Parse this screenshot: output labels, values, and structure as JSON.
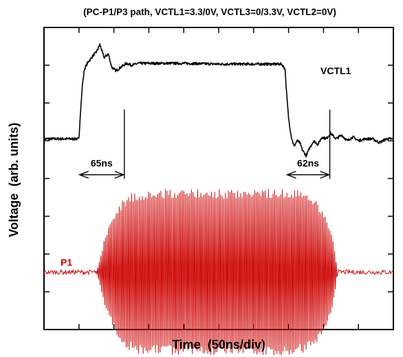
{
  "chart_data": {
    "type": "line",
    "title": "(PC-P1/P3 path, VCTL1=3.3/0V, VCTL3=0/3.3V, VCTL2=0V)",
    "xlabel": "Time  (50ns/div)",
    "ylabel": "Voltage  (arb. units)",
    "x_unit_ns": 50,
    "xlim": [
      0,
      500
    ],
    "ylim": [
      0,
      8
    ],
    "grid": false,
    "series": [
      {
        "name": "VCTL1",
        "color": "#000000",
        "x": [
          0,
          50,
          52,
          55,
          58,
          62,
          66,
          70,
          75,
          80,
          86,
          92,
          97,
          103,
          110,
          118,
          126,
          135,
          145,
          160,
          200,
          250,
          300,
          340,
          345,
          347,
          350,
          354,
          358,
          362,
          366,
          370,
          375,
          380,
          386,
          392,
          398,
          404,
          410,
          418,
          426,
          434,
          442,
          450,
          460,
          470,
          480,
          490,
          500
        ],
        "y": [
          5.05,
          5.05,
          5.7,
          6.5,
          6.9,
          7.05,
          7.15,
          7.25,
          7.35,
          7.55,
          7.2,
          7.3,
          6.95,
          6.85,
          6.95,
          7.05,
          7.0,
          7.05,
          7.05,
          7.05,
          7.05,
          7.03,
          7.03,
          7.03,
          6.9,
          6.3,
          5.6,
          5.1,
          4.85,
          5.0,
          4.95,
          4.75,
          4.6,
          4.8,
          5.0,
          4.9,
          5.1,
          5.05,
          5.2,
          5.05,
          5.15,
          5.0,
          5.1,
          5.0,
          5.05,
          5.05,
          4.95,
          5.05,
          5.05
        ]
      },
      {
        "name": "P1",
        "color": "#cc0000",
        "baseline": 1.52,
        "idle_ripple": 0.06,
        "rf_carrier_ns": 2.2,
        "envelope_x": [
          0,
          75,
          78,
          82,
          86,
          90,
          95,
          100,
          105,
          112,
          120,
          130,
          150,
          200,
          250,
          300,
          350,
          370,
          385,
          395,
          405,
          412,
          416,
          418,
          420,
          500
        ],
        "envelope_amp": [
          0,
          0,
          0.2,
          0.5,
          0.85,
          1.1,
          1.3,
          1.5,
          1.7,
          1.9,
          2.05,
          2.15,
          2.2,
          2.2,
          2.2,
          2.2,
          2.2,
          2.15,
          2.0,
          1.75,
          1.4,
          1.0,
          0.6,
          0.3,
          0,
          0
        ]
      }
    ],
    "annotations": [
      {
        "text": "65ns",
        "x_from": 50,
        "x_to": 115,
        "y": 4.1
      },
      {
        "text": "62ns",
        "x_from": 347,
        "x_to": 409,
        "y": 4.1
      }
    ],
    "label_texts": {
      "vctl1": "VCTL1",
      "p1": "P1"
    }
  }
}
